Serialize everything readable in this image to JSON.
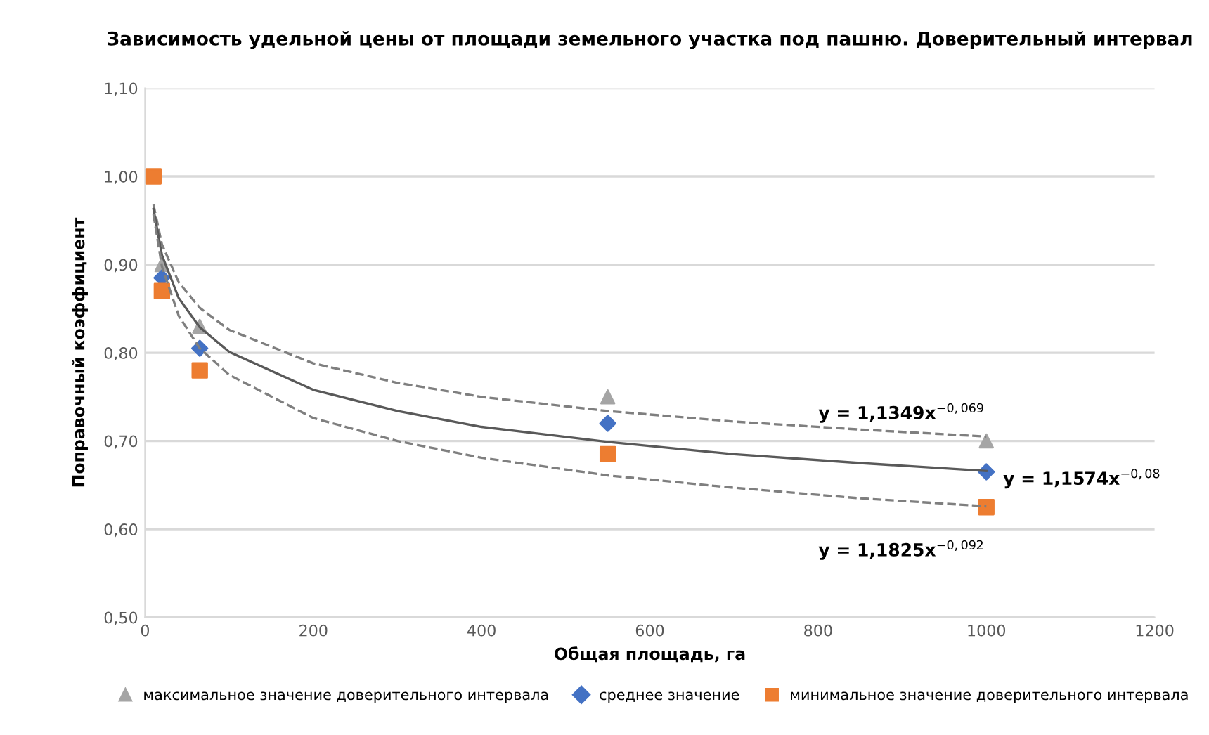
{
  "chart_data": {
    "type": "scatter",
    "title": "Зависимость удельной цены от площади земельного участка под пашню. Доверительный интервал",
    "xlabel": "Общая площадь, га",
    "ylabel": "Поправочный коэффициент",
    "xlim": [
      0,
      1200
    ],
    "xticks": [
      0,
      200,
      400,
      600,
      800,
      1000,
      1200
    ],
    "ylim": [
      0.5,
      1.1
    ],
    "yticks": [
      {
        "value": 0.5,
        "label": "0,50"
      },
      {
        "value": 0.6,
        "label": "0,60"
      },
      {
        "value": 0.7,
        "label": "0,70"
      },
      {
        "value": 0.8,
        "label": "0,80"
      },
      {
        "value": 0.9,
        "label": "0,90"
      },
      {
        "value": 1.0,
        "label": "1,00"
      },
      {
        "value": 1.1,
        "label": "1,10"
      }
    ],
    "grid": "y",
    "legend": "bottom",
    "series": [
      {
        "name": "максимальное значение доверительного интервала",
        "marker": "triangle",
        "color": "#a5a5a5",
        "x": [
          20,
          65,
          550,
          1000
        ],
        "values": [
          0.9,
          0.83,
          0.75,
          0.7
        ]
      },
      {
        "name": "среднее значение",
        "marker": "diamond",
        "color": "#4472c4",
        "x": [
          20,
          65,
          550,
          1000
        ],
        "values": [
          0.885,
          0.805,
          0.72,
          0.665
        ]
      },
      {
        "name": "минимальное значение доверительного интервала",
        "marker": "square",
        "color": "#ed7d31",
        "x": [
          10,
          20,
          65,
          550,
          1000
        ],
        "values": [
          1.0,
          0.87,
          0.78,
          0.685,
          0.625
        ]
      },
      {
        "type": "line",
        "line_style": "dashed",
        "color": "#7f7f7f",
        "x": [
          10,
          20,
          40,
          65,
          100,
          200,
          300,
          400,
          550,
          700,
          850,
          1000
        ],
        "values": [
          0.968,
          0.923,
          0.88,
          0.851,
          0.826,
          0.788,
          0.766,
          0.75,
          0.734,
          0.722,
          0.713,
          0.705
        ]
      },
      {
        "type": "line",
        "line_style": "solid",
        "color": "#595959",
        "x": [
          10,
          20,
          40,
          65,
          100,
          200,
          300,
          400,
          550,
          700,
          850,
          1000
        ],
        "values": [
          0.963,
          0.911,
          0.862,
          0.829,
          0.801,
          0.758,
          0.734,
          0.716,
          0.699,
          0.685,
          0.675,
          0.666
        ]
      },
      {
        "type": "line",
        "line_style": "dashed",
        "color": "#7f7f7f",
        "x": [
          10,
          20,
          40,
          65,
          100,
          200,
          300,
          400,
          550,
          700,
          850,
          1000
        ],
        "values": [
          0.957,
          0.898,
          0.842,
          0.805,
          0.775,
          0.726,
          0.7,
          0.681,
          0.661,
          0.647,
          0.635,
          0.626
        ]
      }
    ],
    "annotations": [
      "y = 1,1349x$^{−0,069}$",
      "y = 1,1574x$^{−0,08}$",
      "y = 1,1825x$^{−0,092}$"
    ]
  }
}
